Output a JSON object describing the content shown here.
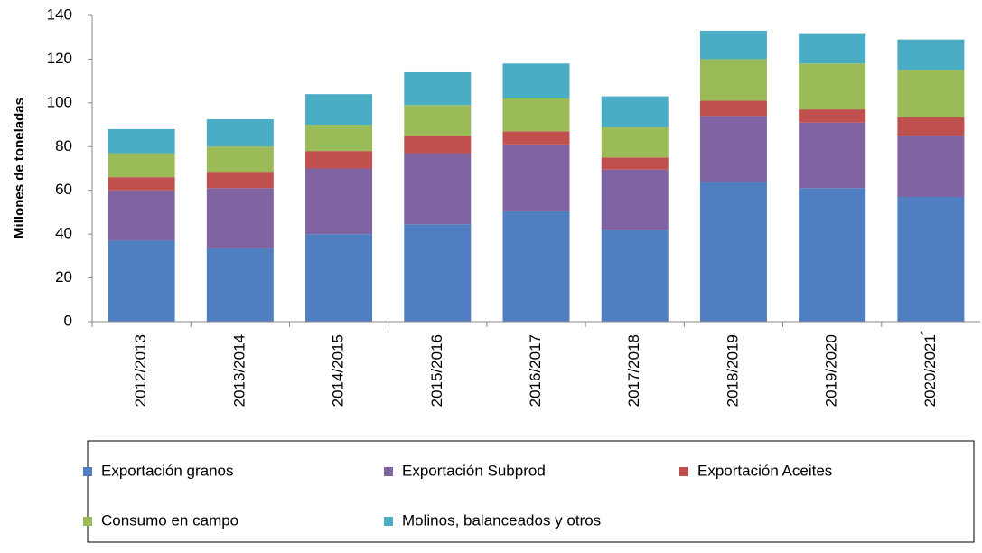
{
  "chart_data": {
    "type": "stacked_bar",
    "y_label": "Millones de toneladas",
    "categories": [
      "2012/2013",
      "2013/2014",
      "2014/2015",
      "2015/2016",
      "2016/2017",
      "2017/2018",
      "2018/2019",
      "2019/2020",
      "2020/2021"
    ],
    "annotations": [
      "*"
    ],
    "series": [
      {
        "name": "Exportación granos",
        "color": "#4f7fc0",
        "values": [
          37,
          33.5,
          40,
          44.5,
          50.5,
          42,
          64,
          61,
          57
        ]
      },
      {
        "name": "Exportación Subprod",
        "color": "#8064a2",
        "values": [
          23,
          27.5,
          30,
          32.5,
          30.5,
          27.5,
          30,
          30,
          28
        ]
      },
      {
        "name": "Exportación Aceites",
        "color": "#c0504d",
        "values": [
          6,
          7.5,
          8,
          8,
          6,
          5.5,
          7,
          6,
          8.5
        ]
      },
      {
        "name": "Consumo en campo",
        "color": "#9bbb59",
        "values": [
          11,
          11.5,
          12,
          14,
          15,
          14,
          19,
          21,
          21.5
        ]
      },
      {
        "name": "Molinos, balanceados y otros",
        "color": "#4bacc6",
        "values": [
          11,
          12.5,
          14,
          15,
          16,
          14,
          13,
          13.5,
          14
        ]
      }
    ],
    "ylim": [
      0,
      140
    ],
    "yticks": [
      0,
      20,
      40,
      60,
      80,
      100,
      120,
      140
    ],
    "grid": false,
    "legend": "bottom"
  }
}
